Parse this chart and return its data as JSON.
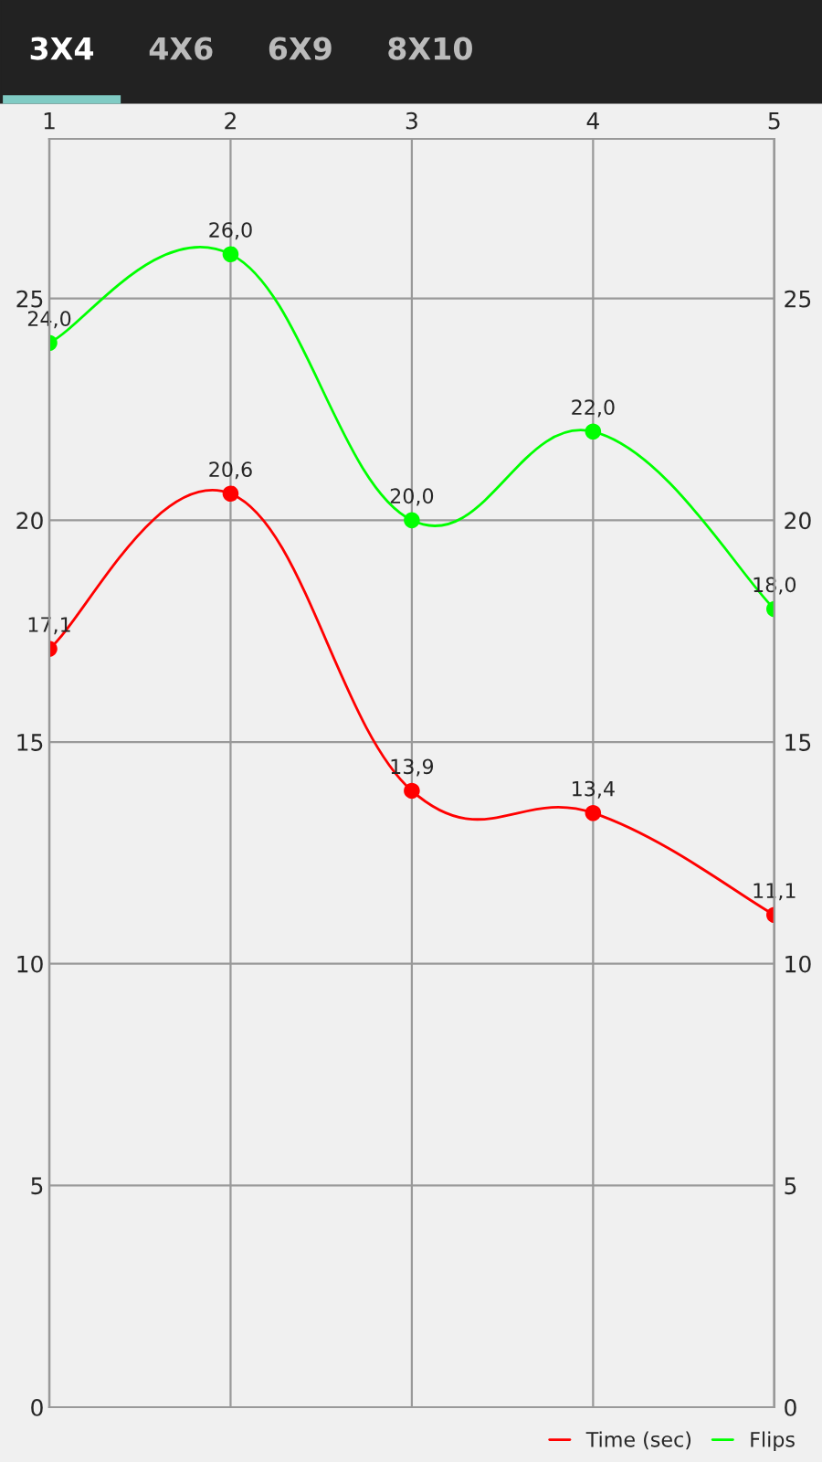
{
  "chart_data": {
    "type": "line",
    "annotations": [
      "3X4",
      "4X6",
      "6X9",
      "8X10"
    ],
    "x": [
      1,
      2,
      3,
      4,
      5
    ],
    "xlim": [
      1,
      5
    ],
    "xticks": [
      1,
      2,
      3,
      4,
      5
    ],
    "ylim": [
      0,
      28.6
    ],
    "yticks": [
      0,
      5,
      10,
      15,
      20,
      25
    ],
    "y2lim": [
      0,
      28.6
    ],
    "y2ticks": [
      0,
      5,
      10,
      15,
      20,
      25
    ],
    "series": [
      {
        "name": "Time (sec)",
        "color": "#ff0000",
        "values": [
          17.1,
          20.6,
          13.9,
          13.4,
          11.1
        ],
        "value_labels": [
          "17,1",
          "20,6",
          "13,9",
          "13,4",
          "11,1"
        ]
      },
      {
        "name": "Flips",
        "color": "#00ff00",
        "values": [
          24.0,
          26.0,
          20.0,
          22.0,
          18.0
        ],
        "value_labels": [
          "24,0",
          "26,0",
          "20,0",
          "22,0",
          "18,0"
        ]
      }
    ],
    "grid": true,
    "legend": "bottom right",
    "marker": "circle",
    "line_style": "solid"
  }
}
